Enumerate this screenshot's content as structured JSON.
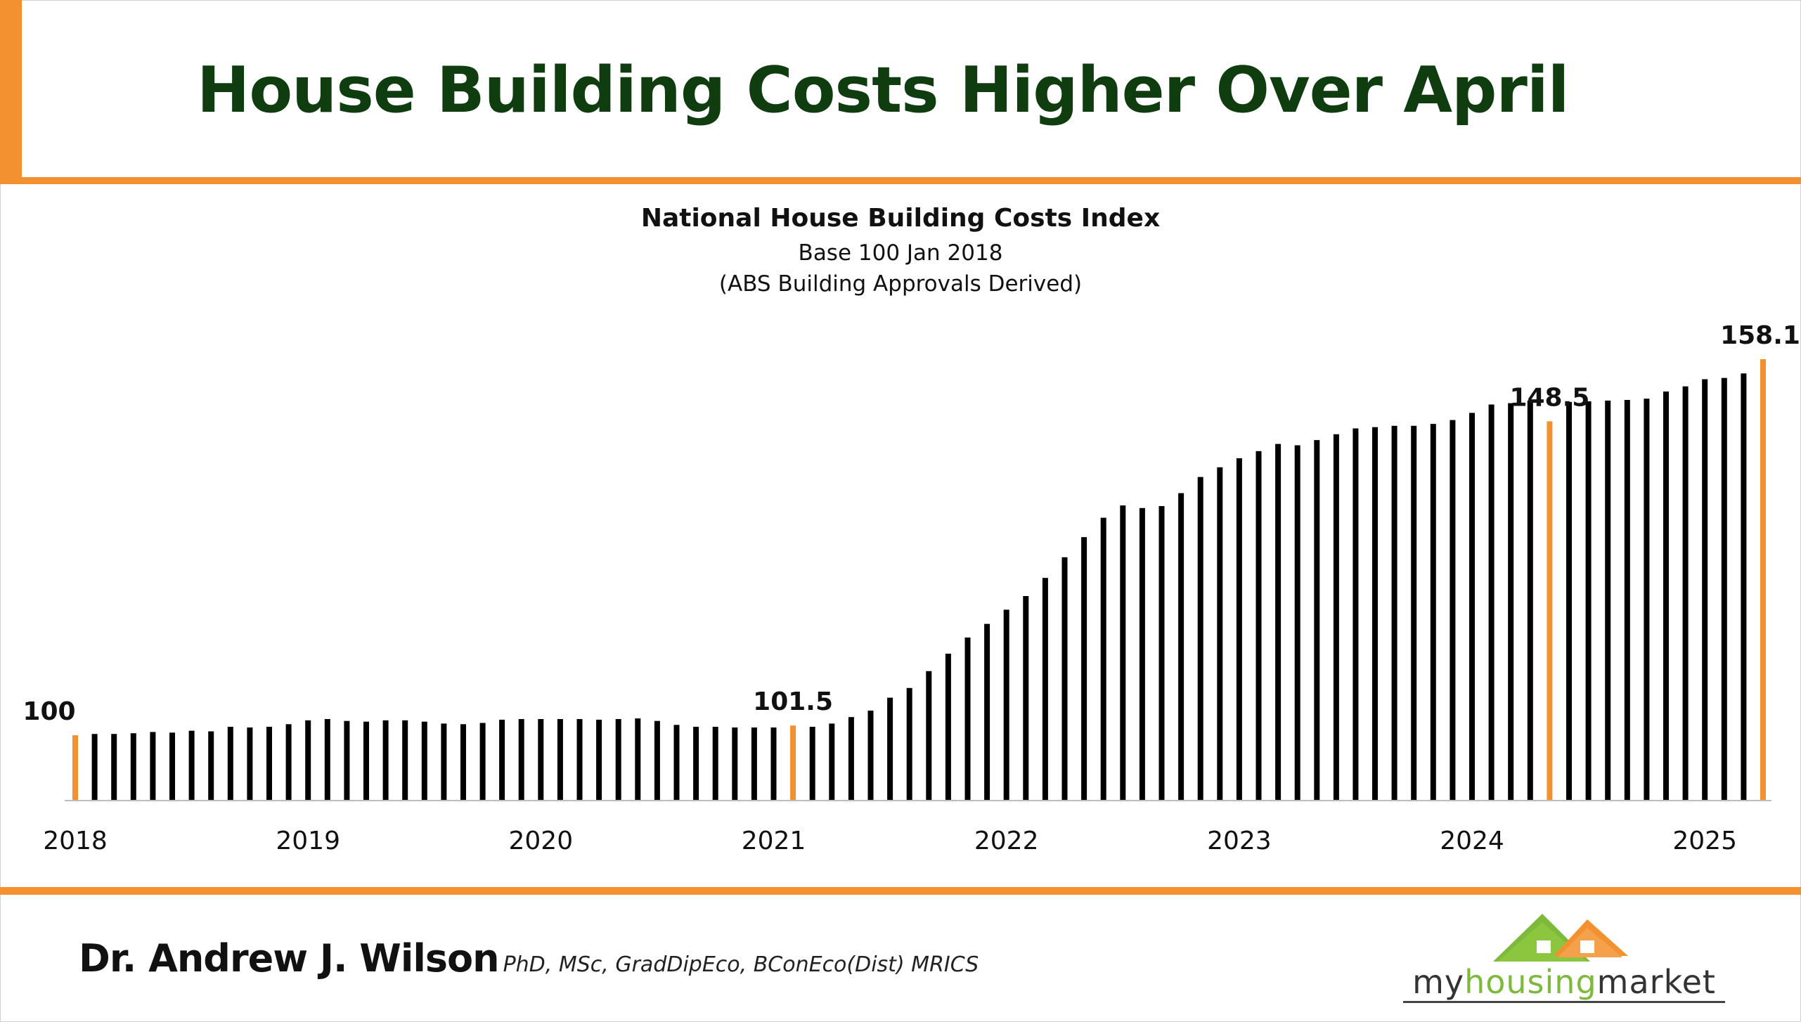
{
  "headline": "House Building Costs Higher Over April",
  "author": {
    "name": "Dr. Andrew J. Wilson",
    "credentials": "PhD, MSc, GradDipEco, BConEco(Dist) MRICS"
  },
  "logo": {
    "part1": "my",
    "part2": "housing",
    "part3": "market"
  },
  "colors": {
    "accent": "#F39130",
    "headline": "#0F3D0F",
    "bar": "#000000",
    "logo_green": "#7DBA3C"
  },
  "chart_data": {
    "type": "bar",
    "title": "National House Building Costs Index",
    "subtitle": "Base 100 Jan 2018",
    "subtitle2": "(ABS Building Approvals Derived)",
    "xlabel": "",
    "ylabel": "",
    "grid": false,
    "year_ticks": [
      "2018",
      "2019",
      "2020",
      "2021",
      "2022",
      "2023",
      "2024",
      "2025"
    ],
    "highlight": [
      {
        "index": 0,
        "label": "100"
      },
      {
        "index": 37,
        "label": "101.5"
      },
      {
        "index": 76,
        "label": "148.5"
      },
      {
        "index": 87,
        "label": "158.1"
      }
    ],
    "values": [
      100,
      100.2,
      100.2,
      100.3,
      100.5,
      100.4,
      100.7,
      100.6,
      101.3,
      101.2,
      101.3,
      101.7,
      102.3,
      102.5,
      102.2,
      102.1,
      102.3,
      102.3,
      102.1,
      101.8,
      101.7,
      101.9,
      102.4,
      102.5,
      102.5,
      102.5,
      102.5,
      102.4,
      102.5,
      102.6,
      102.2,
      101.6,
      101.3,
      101.3,
      101.2,
      101.2,
      101.2,
      101.5,
      101.3,
      101.8,
      102.8,
      103.8,
      105.8,
      107.3,
      109.9,
      112.6,
      115.1,
      117.2,
      119.4,
      121.5,
      124.3,
      127.5,
      130.6,
      133.6,
      135.5,
      135.1,
      135.4,
      137.4,
      139.9,
      141.4,
      142.8,
      143.9,
      145.0,
      144.8,
      145.6,
      146.5,
      147.4,
      147.6,
      147.8,
      147.8,
      148.1,
      148.7,
      149.8,
      151.1,
      151.3,
      151.7,
      148.5,
      151.5,
      151.6,
      151.7,
      151.8,
      152.0,
      153.1,
      153.9,
      155.0,
      155.2,
      155.9,
      158.1
    ]
  }
}
